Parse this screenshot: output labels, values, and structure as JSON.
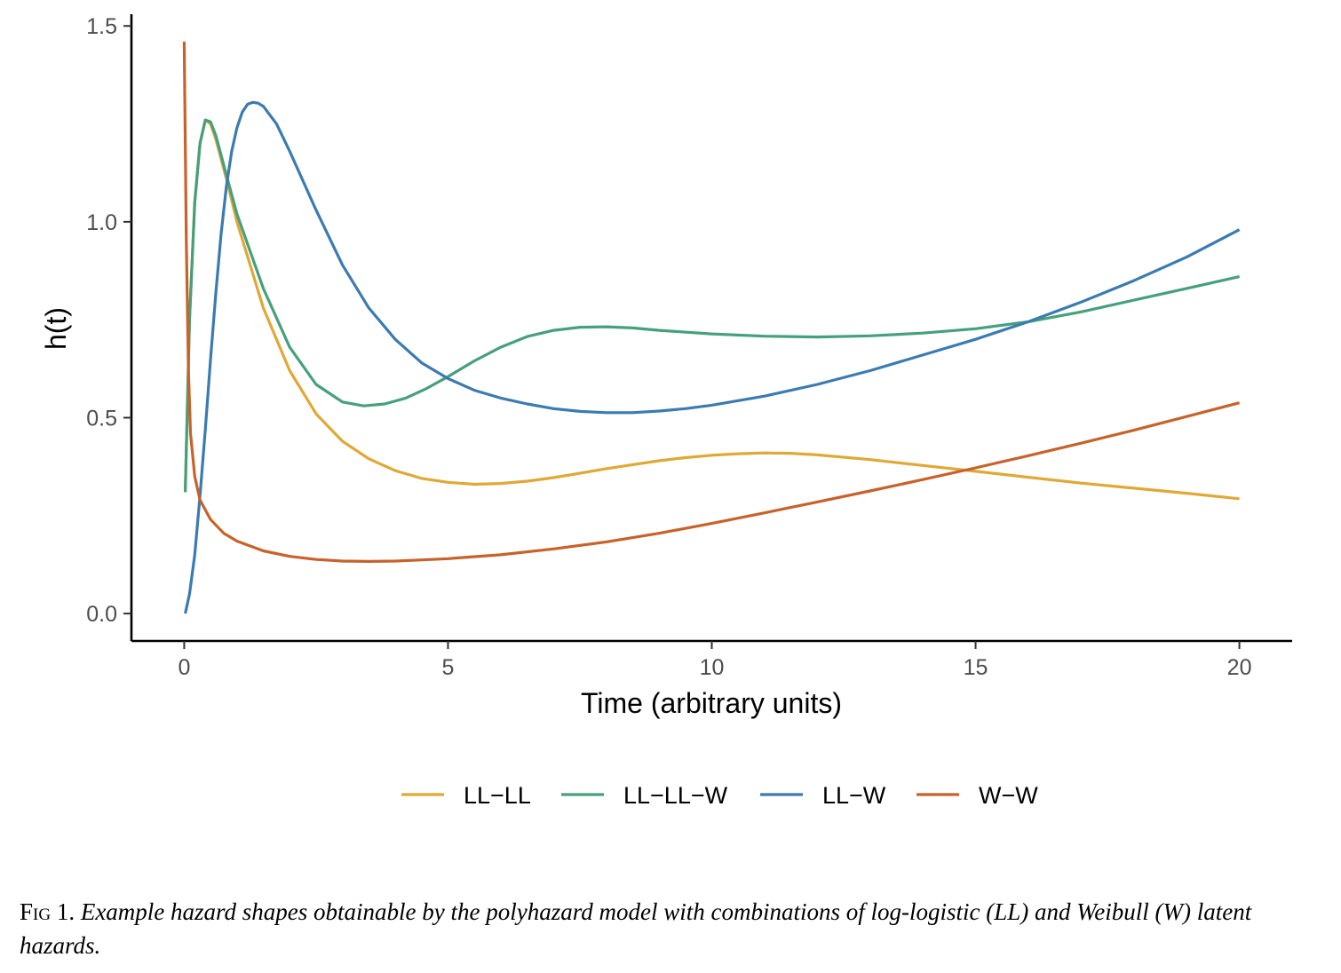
{
  "chart_data": {
    "type": "line",
    "title": "",
    "xlabel": "Time (arbitrary units)",
    "ylabel": "h(t)",
    "xlim": [
      -1,
      21
    ],
    "ylim": [
      -0.07,
      1.53
    ],
    "x_ticks": [
      0,
      5,
      10,
      15,
      20
    ],
    "x_tick_labels": [
      "0",
      "5",
      "10",
      "15",
      "20"
    ],
    "y_ticks": [
      0.0,
      0.5,
      1.0,
      1.5
    ],
    "y_tick_labels": [
      "0.0",
      "0.5",
      "1.0",
      "1.5"
    ],
    "grid": false,
    "legend_position": "bottom",
    "series": [
      {
        "name": "LL−LL",
        "color": "#e0a835",
        "points": [
          [
            0.02,
            0.31
          ],
          [
            0.1,
            0.75
          ],
          [
            0.2,
            1.05
          ],
          [
            0.3,
            1.2
          ],
          [
            0.4,
            1.26
          ],
          [
            0.5,
            1.25
          ],
          [
            0.6,
            1.21
          ],
          [
            0.8,
            1.11
          ],
          [
            1.0,
            1.0
          ],
          [
            1.5,
            0.78
          ],
          [
            2.0,
            0.62
          ],
          [
            2.5,
            0.51
          ],
          [
            3.0,
            0.44
          ],
          [
            3.5,
            0.395
          ],
          [
            4.0,
            0.365
          ],
          [
            4.5,
            0.345
          ],
          [
            5.0,
            0.335
          ],
          [
            5.5,
            0.33
          ],
          [
            6.0,
            0.332
          ],
          [
            6.5,
            0.338
          ],
          [
            7.0,
            0.347
          ],
          [
            7.5,
            0.358
          ],
          [
            8.0,
            0.37
          ],
          [
            8.5,
            0.38
          ],
          [
            9.0,
            0.39
          ],
          [
            9.5,
            0.398
          ],
          [
            10.0,
            0.404
          ],
          [
            10.5,
            0.408
          ],
          [
            11.0,
            0.41
          ],
          [
            11.5,
            0.409
          ],
          [
            12.0,
            0.405
          ],
          [
            13.0,
            0.393
          ],
          [
            14.0,
            0.378
          ],
          [
            15.0,
            0.363
          ],
          [
            16.0,
            0.348
          ],
          [
            17.0,
            0.333
          ],
          [
            18.0,
            0.32
          ],
          [
            19.0,
            0.307
          ],
          [
            20.0,
            0.293
          ]
        ]
      },
      {
        "name": "LL−LL−W",
        "color": "#45a07b",
        "points": [
          [
            0.02,
            0.31
          ],
          [
            0.1,
            0.75
          ],
          [
            0.2,
            1.05
          ],
          [
            0.3,
            1.2
          ],
          [
            0.4,
            1.26
          ],
          [
            0.5,
            1.255
          ],
          [
            0.6,
            1.22
          ],
          [
            0.8,
            1.12
          ],
          [
            1.0,
            1.02
          ],
          [
            1.5,
            0.83
          ],
          [
            2.0,
            0.68
          ],
          [
            2.5,
            0.585
          ],
          [
            3.0,
            0.54
          ],
          [
            3.4,
            0.53
          ],
          [
            3.8,
            0.535
          ],
          [
            4.2,
            0.55
          ],
          [
            4.6,
            0.575
          ],
          [
            5.0,
            0.605
          ],
          [
            5.5,
            0.645
          ],
          [
            6.0,
            0.68
          ],
          [
            6.5,
            0.707
          ],
          [
            7.0,
            0.723
          ],
          [
            7.5,
            0.731
          ],
          [
            8.0,
            0.732
          ],
          [
            8.5,
            0.729
          ],
          [
            9.0,
            0.723
          ],
          [
            10.0,
            0.714
          ],
          [
            11.0,
            0.708
          ],
          [
            12.0,
            0.706
          ],
          [
            13.0,
            0.709
          ],
          [
            14.0,
            0.716
          ],
          [
            15.0,
            0.727
          ],
          [
            16.0,
            0.745
          ],
          [
            17.0,
            0.77
          ],
          [
            18.0,
            0.8
          ],
          [
            19.0,
            0.83
          ],
          [
            20.0,
            0.86
          ]
        ]
      },
      {
        "name": "LL−W",
        "color": "#3a7bb1",
        "points": [
          [
            0.02,
            0.0
          ],
          [
            0.1,
            0.05
          ],
          [
            0.2,
            0.15
          ],
          [
            0.3,
            0.3
          ],
          [
            0.4,
            0.47
          ],
          [
            0.5,
            0.65
          ],
          [
            0.6,
            0.82
          ],
          [
            0.7,
            0.97
          ],
          [
            0.8,
            1.09
          ],
          [
            0.9,
            1.18
          ],
          [
            1.0,
            1.24
          ],
          [
            1.1,
            1.28
          ],
          [
            1.2,
            1.3
          ],
          [
            1.3,
            1.305
          ],
          [
            1.4,
            1.303
          ],
          [
            1.5,
            1.295
          ],
          [
            1.75,
            1.25
          ],
          [
            2.0,
            1.18
          ],
          [
            2.5,
            1.03
          ],
          [
            3.0,
            0.89
          ],
          [
            3.5,
            0.78
          ],
          [
            4.0,
            0.7
          ],
          [
            4.5,
            0.64
          ],
          [
            5.0,
            0.6
          ],
          [
            5.5,
            0.57
          ],
          [
            6.0,
            0.55
          ],
          [
            6.5,
            0.535
          ],
          [
            7.0,
            0.523
          ],
          [
            7.5,
            0.516
          ],
          [
            8.0,
            0.513
          ],
          [
            8.5,
            0.513
          ],
          [
            9.0,
            0.517
          ],
          [
            9.5,
            0.523
          ],
          [
            10.0,
            0.532
          ],
          [
            11.0,
            0.555
          ],
          [
            12.0,
            0.585
          ],
          [
            13.0,
            0.62
          ],
          [
            14.0,
            0.66
          ],
          [
            15.0,
            0.7
          ],
          [
            16.0,
            0.745
          ],
          [
            17.0,
            0.795
          ],
          [
            18.0,
            0.85
          ],
          [
            19.0,
            0.91
          ],
          [
            20.0,
            0.98
          ]
        ]
      },
      {
        "name": "W−W",
        "color": "#c7622a",
        "points": [
          [
            0.0,
            1.46
          ],
          [
            0.04,
            0.95
          ],
          [
            0.08,
            0.62
          ],
          [
            0.12,
            0.46
          ],
          [
            0.2,
            0.35
          ],
          [
            0.3,
            0.29
          ],
          [
            0.5,
            0.24
          ],
          [
            0.75,
            0.205
          ],
          [
            1.0,
            0.185
          ],
          [
            1.5,
            0.16
          ],
          [
            2.0,
            0.146
          ],
          [
            2.5,
            0.138
          ],
          [
            3.0,
            0.134
          ],
          [
            3.5,
            0.133
          ],
          [
            4.0,
            0.134
          ],
          [
            4.5,
            0.137
          ],
          [
            5.0,
            0.14
          ],
          [
            6.0,
            0.15
          ],
          [
            7.0,
            0.165
          ],
          [
            8.0,
            0.183
          ],
          [
            9.0,
            0.205
          ],
          [
            10.0,
            0.23
          ],
          [
            11.0,
            0.257
          ],
          [
            12.0,
            0.285
          ],
          [
            13.0,
            0.313
          ],
          [
            14.0,
            0.342
          ],
          [
            15.0,
            0.372
          ],
          [
            16.0,
            0.403
          ],
          [
            17.0,
            0.435
          ],
          [
            18.0,
            0.468
          ],
          [
            19.0,
            0.503
          ],
          [
            20.0,
            0.538
          ]
        ]
      }
    ]
  },
  "caption": {
    "label": "Fig 1.",
    "text": "Example hazard shapes obtainable by the polyhazard model with combinations of log-logistic (LL) and Weibull (W) latent hazards."
  }
}
